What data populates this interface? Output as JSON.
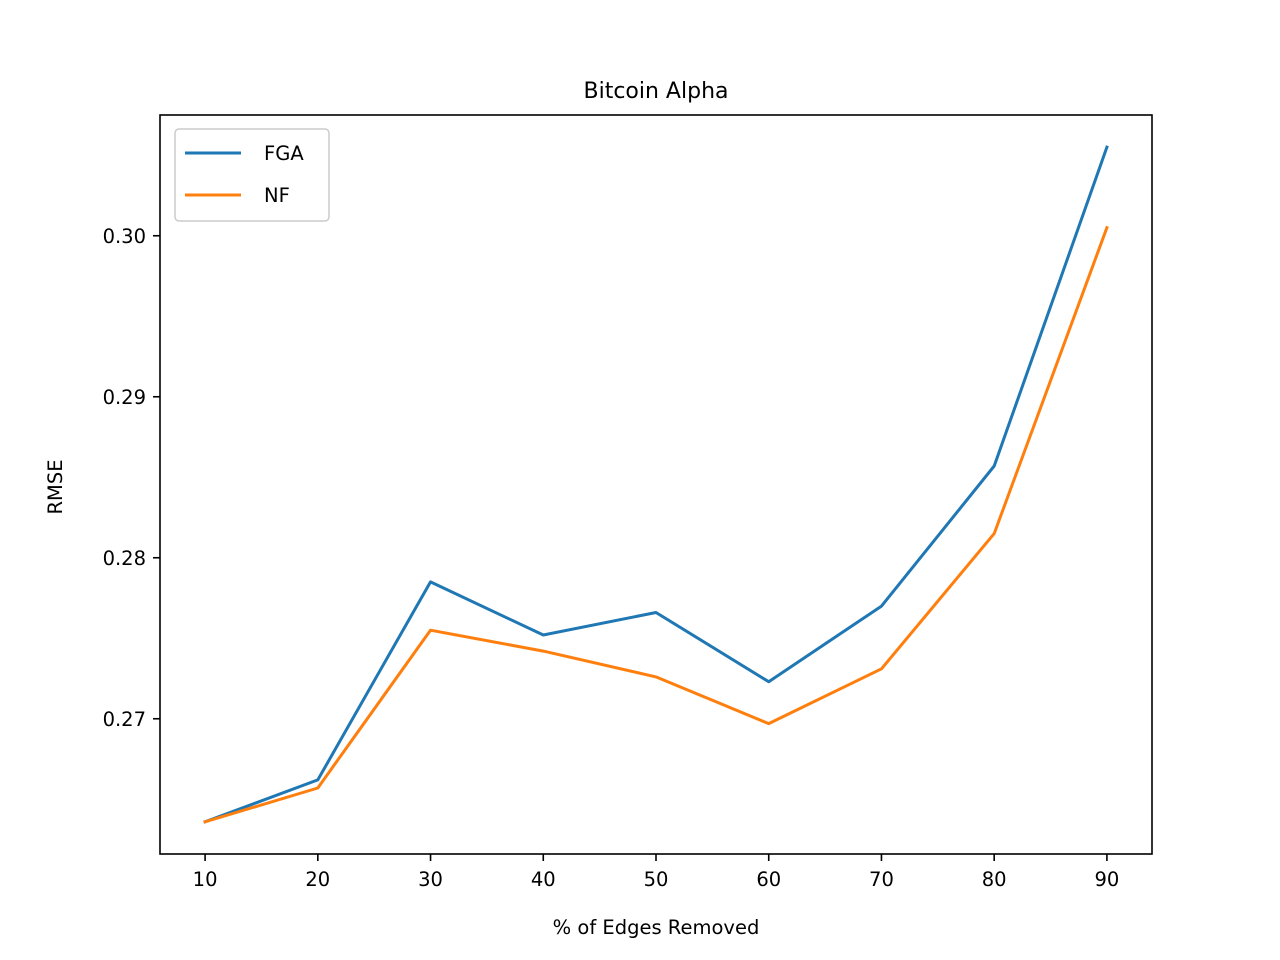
{
  "chart_data": {
    "type": "line",
    "title": "Bitcoin Alpha",
    "xlabel": "% of Edges Removed",
    "ylabel": "RMSE",
    "x": [
      10,
      20,
      30,
      40,
      50,
      60,
      70,
      80,
      90
    ],
    "xticks": [
      "10",
      "20",
      "30",
      "40",
      "50",
      "60",
      "70",
      "80",
      "90"
    ],
    "yticks": [
      "0.27",
      "0.28",
      "0.29",
      "0.30"
    ],
    "ytick_values": [
      0.27,
      0.28,
      0.29,
      0.3
    ],
    "xlim": [
      6,
      94
    ],
    "ylim": [
      0.2616,
      0.3075
    ],
    "grid": false,
    "legend_position": "top-left",
    "series": [
      {
        "name": "FGA",
        "color": "#1f77b4",
        "values": [
          0.2636,
          0.2662,
          0.2785,
          0.2752,
          0.2766,
          0.2723,
          0.277,
          0.2857,
          0.3055
        ]
      },
      {
        "name": "NF",
        "color": "#ff7f0e",
        "values": [
          0.2636,
          0.2657,
          0.2755,
          0.2742,
          0.2726,
          0.2697,
          0.2731,
          0.2815,
          0.3005
        ]
      }
    ]
  }
}
